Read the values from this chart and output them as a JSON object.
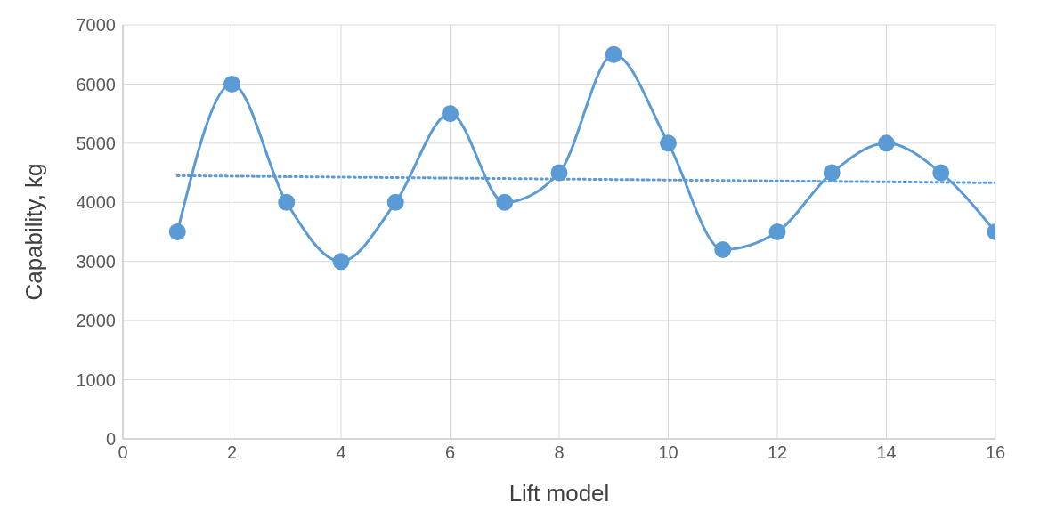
{
  "chart_data": {
    "type": "line",
    "xlabel": "Lift model",
    "ylabel": "Capability, kg",
    "xlim": [
      0,
      16
    ],
    "xticks": [
      0,
      2,
      4,
      6,
      8,
      10,
      12,
      14,
      16
    ],
    "ylim": [
      0,
      7000
    ],
    "yticks": [
      0,
      1000,
      2000,
      3000,
      4000,
      5000,
      6000,
      7000
    ],
    "grid": true,
    "series": [
      {
        "color": "#5b9bd5",
        "marker": "circle",
        "line_style": "solid",
        "x": [
          1,
          2,
          3,
          4,
          5,
          6,
          7,
          8,
          9,
          10,
          11,
          12,
          13,
          14,
          15,
          16
        ],
        "values": [
          3500,
          6000,
          4000,
          3000,
          4000,
          5500,
          4000,
          4500,
          6500,
          5000,
          3200,
          3500,
          4500,
          5000,
          4500,
          3500
        ]
      },
      {
        "color": "#5b9bd5",
        "marker": "none",
        "line_style": "dotted",
        "x": [
          1,
          16
        ],
        "values": [
          4450,
          4330
        ]
      }
    ]
  }
}
